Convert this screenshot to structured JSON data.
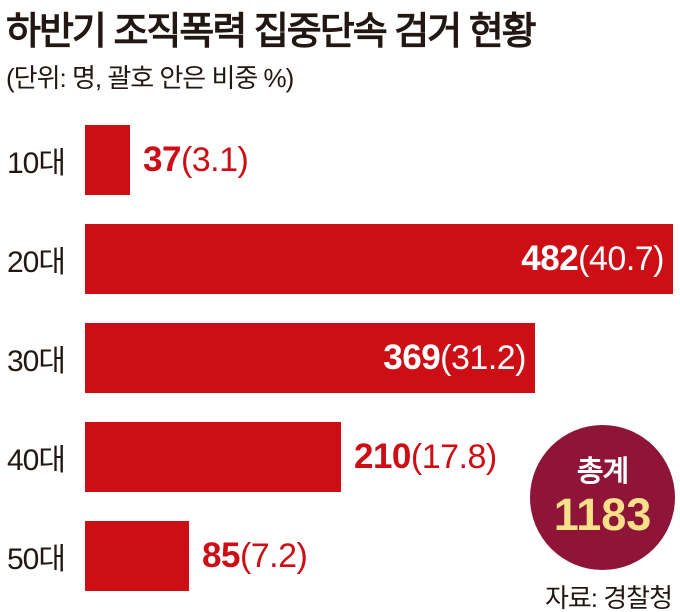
{
  "title": "하반기 조직폭력 집중단속 검거 현황",
  "subtitle": "(단위: 명, 괄호 안은 비중 %)",
  "source": "자료: 경찰청",
  "total_badge": {
    "label": "총계",
    "value": "1183"
  },
  "colors": {
    "bar_red": "#cd0e15",
    "badge_burgundy": "#8e1538",
    "badge_value_yellow": "#f8e08a",
    "text_dark": "#221713",
    "inside_label_white": "#ffffff"
  },
  "chart_data": {
    "type": "bar",
    "orientation": "horizontal",
    "title": "하반기 조직폭력 집중단속 검거 현황",
    "unit_note": "(단위: 명, 괄호 안은 비중 %)",
    "categories": [
      "10대",
      "20대",
      "30대",
      "40대",
      "50대"
    ],
    "values": [
      37,
      482,
      369,
      210,
      85
    ],
    "percents": [
      3.1,
      40.7,
      31.2,
      17.8,
      7.2
    ],
    "value_labels": [
      "37(3.1)",
      "482(40.7)",
      "369(31.2)",
      "210(17.8)",
      "85(7.2)"
    ],
    "total": 1183,
    "xlim": [
      0,
      482
    ],
    "grid": false,
    "legend": false,
    "source": "자료: 경찰청"
  },
  "rows": [
    {
      "category": "10대",
      "value": 37,
      "value_main": "37",
      "value_paren": "(3.1)",
      "placement": "outside"
    },
    {
      "category": "20대",
      "value": 482,
      "value_main": "482",
      "value_paren": "(40.7)",
      "placement": "inside"
    },
    {
      "category": "30대",
      "value": 369,
      "value_main": "369",
      "value_paren": "(31.2)",
      "placement": "inside"
    },
    {
      "category": "40대",
      "value": 210,
      "value_main": "210",
      "value_paren": "(17.8)",
      "placement": "outside"
    },
    {
      "category": "50대",
      "value": 85,
      "value_main": "85",
      "value_paren": "(7.2)",
      "placement": "outside"
    }
  ]
}
